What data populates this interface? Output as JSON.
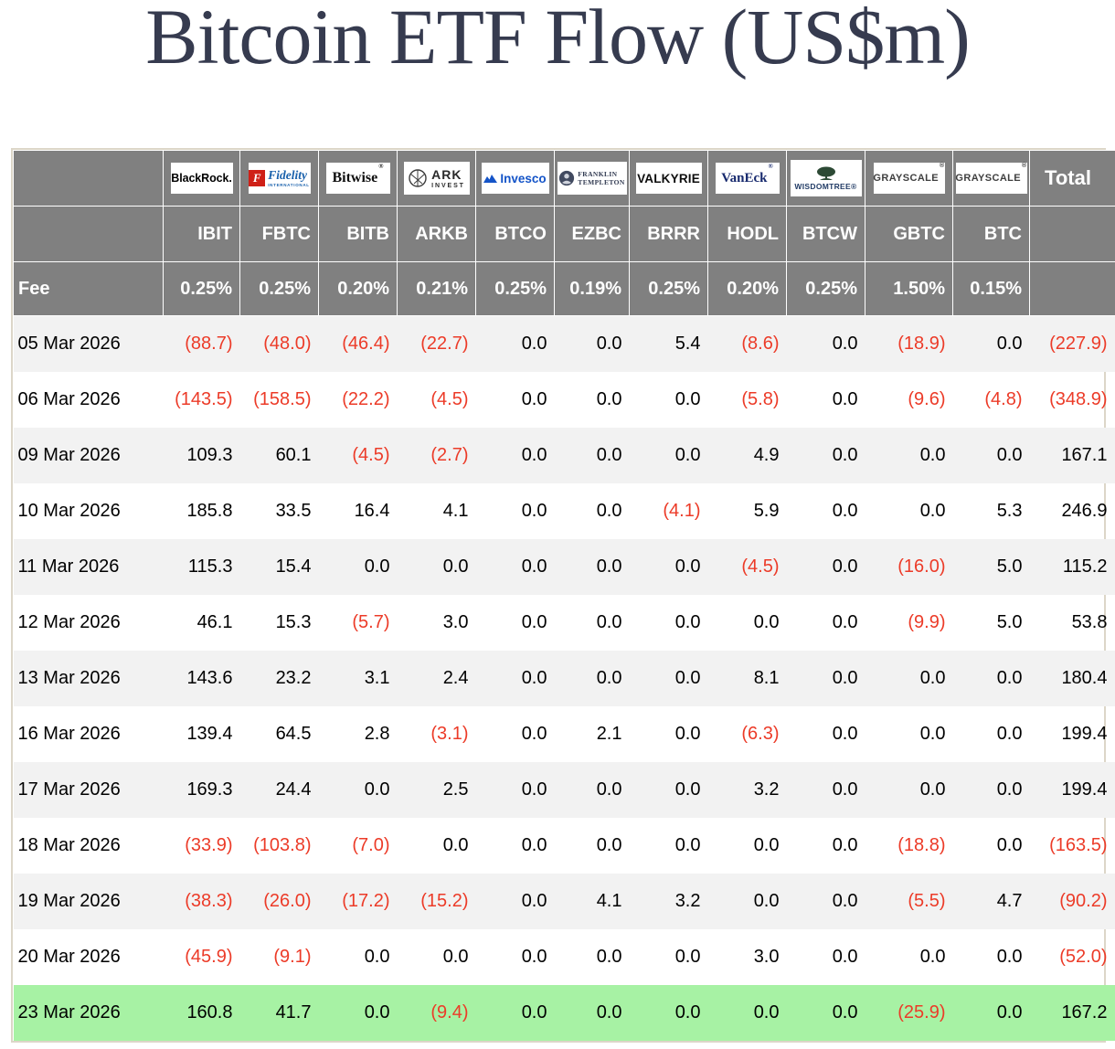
{
  "title": "Bitcoin ETF Flow (US$m)",
  "fee_row_label": "Fee",
  "total_column_label": "Total",
  "providers": [
    {
      "name": "BlackRock",
      "icon": null,
      "logo_text": "BlackRock.",
      "logo_sub": "",
      "ticker": "IBIT",
      "fee": "0.25%"
    },
    {
      "name": "Fidelity International",
      "icon": "fidelity-f-icon",
      "logo_text": "Fidelity",
      "logo_sub": "INTERNATIONAL",
      "ticker": "FBTC",
      "fee": "0.25%"
    },
    {
      "name": "Bitwise",
      "icon": null,
      "logo_text": "Bitwise",
      "logo_sub": "",
      "ticker": "BITB",
      "fee": "0.20%"
    },
    {
      "name": "ARK Invest",
      "icon": "ark-circle-icon",
      "logo_text": "ARK",
      "logo_sub": "INVEST",
      "ticker": "ARKB",
      "fee": "0.21%"
    },
    {
      "name": "Invesco",
      "icon": "invesco-mountain-icon",
      "logo_text": "Invesco",
      "logo_sub": "",
      "ticker": "BTCO",
      "fee": "0.25%"
    },
    {
      "name": "Franklin Templeton",
      "icon": "franklin-bust-icon",
      "logo_text": "FRANKLIN",
      "logo_sub": "TEMPLETON",
      "ticker": "EZBC",
      "fee": "0.19%"
    },
    {
      "name": "Valkyrie",
      "icon": null,
      "logo_text": "VALKYRIE",
      "logo_sub": "",
      "ticker": "BRRR",
      "fee": "0.25%"
    },
    {
      "name": "VanEck",
      "icon": null,
      "logo_text": "VanEck",
      "logo_sub": "",
      "ticker": "HODL",
      "fee": "0.20%"
    },
    {
      "name": "WisdomTree",
      "icon": "wisdomtree-tree-icon",
      "logo_text": "WISDOMTREE",
      "logo_sub": "",
      "ticker": "BTCW",
      "fee": "0.25%"
    },
    {
      "name": "Grayscale",
      "icon": null,
      "logo_text": "GRAYSCALE",
      "logo_sub": "",
      "ticker": "GBTC",
      "fee": "1.50%"
    },
    {
      "name": "Grayscale",
      "icon": null,
      "logo_text": "GRAYSCALE",
      "logo_sub": "",
      "ticker": "BTC",
      "fee": "0.15%"
    }
  ],
  "chart_data": {
    "type": "table",
    "title": "Bitcoin ETF Flow (US$m)",
    "columns": [
      "IBIT",
      "FBTC",
      "BITB",
      "ARKB",
      "BTCO",
      "EZBC",
      "BRRR",
      "HODL",
      "BTCW",
      "GBTC",
      "BTC",
      "Total"
    ],
    "fees": [
      "0.25%",
      "0.25%",
      "0.20%",
      "0.21%",
      "0.25%",
      "0.19%",
      "0.25%",
      "0.20%",
      "0.25%",
      "1.50%",
      "0.15%",
      null
    ],
    "negative_format": "parentheses-red",
    "rows": [
      {
        "date": "05 Mar 2026",
        "values": [
          -88.7,
          -48.0,
          -46.4,
          -22.7,
          0.0,
          0.0,
          5.4,
          -8.6,
          0.0,
          -18.9,
          0.0
        ],
        "total": -227.9,
        "highlight": false
      },
      {
        "date": "06 Mar 2026",
        "values": [
          -143.5,
          -158.5,
          -22.2,
          -4.5,
          0.0,
          0.0,
          0.0,
          -5.8,
          0.0,
          -9.6,
          -4.8
        ],
        "total": -348.9,
        "highlight": false
      },
      {
        "date": "09 Mar 2026",
        "values": [
          109.3,
          60.1,
          -4.5,
          -2.7,
          0.0,
          0.0,
          0.0,
          4.9,
          0.0,
          0.0,
          0.0
        ],
        "total": 167.1,
        "highlight": false
      },
      {
        "date": "10 Mar 2026",
        "values": [
          185.8,
          33.5,
          16.4,
          4.1,
          0.0,
          0.0,
          -4.1,
          5.9,
          0.0,
          0.0,
          5.3
        ],
        "total": 246.9,
        "highlight": false
      },
      {
        "date": "11 Mar 2026",
        "values": [
          115.3,
          15.4,
          0.0,
          0.0,
          0.0,
          0.0,
          0.0,
          -4.5,
          0.0,
          -16.0,
          5.0
        ],
        "total": 115.2,
        "highlight": false
      },
      {
        "date": "12 Mar 2026",
        "values": [
          46.1,
          15.3,
          -5.7,
          3.0,
          0.0,
          0.0,
          0.0,
          0.0,
          0.0,
          -9.9,
          5.0
        ],
        "total": 53.8,
        "highlight": false
      },
      {
        "date": "13 Mar 2026",
        "values": [
          143.6,
          23.2,
          3.1,
          2.4,
          0.0,
          0.0,
          0.0,
          8.1,
          0.0,
          0.0,
          0.0
        ],
        "total": 180.4,
        "highlight": false
      },
      {
        "date": "16 Mar 2026",
        "values": [
          139.4,
          64.5,
          2.8,
          -3.1,
          0.0,
          2.1,
          0.0,
          -6.3,
          0.0,
          0.0,
          0.0
        ],
        "total": 199.4,
        "highlight": false
      },
      {
        "date": "17 Mar 2026",
        "values": [
          169.3,
          24.4,
          0.0,
          2.5,
          0.0,
          0.0,
          0.0,
          3.2,
          0.0,
          0.0,
          0.0
        ],
        "total": 199.4,
        "highlight": false
      },
      {
        "date": "18 Mar 2026",
        "values": [
          -33.9,
          -103.8,
          -7.0,
          0.0,
          0.0,
          0.0,
          0.0,
          0.0,
          0.0,
          -18.8,
          0.0
        ],
        "total": -163.5,
        "highlight": false
      },
      {
        "date": "19 Mar 2026",
        "values": [
          -38.3,
          -26.0,
          -17.2,
          -15.2,
          0.0,
          4.1,
          3.2,
          0.0,
          0.0,
          -5.5,
          4.7
        ],
        "total": -90.2,
        "highlight": false
      },
      {
        "date": "20 Mar 2026",
        "values": [
          -45.9,
          -9.1,
          0.0,
          0.0,
          0.0,
          0.0,
          0.0,
          3.0,
          0.0,
          0.0,
          0.0
        ],
        "total": -52.0,
        "highlight": false
      },
      {
        "date": "23 Mar 2026",
        "values": [
          160.8,
          41.7,
          0.0,
          -9.4,
          0.0,
          0.0,
          0.0,
          0.0,
          0.0,
          -25.9,
          0.0
        ],
        "total": 167.2,
        "highlight": true
      }
    ]
  },
  "colors": {
    "negative_value": "#ec3b28",
    "highlight_row": "#a7f2a4",
    "header_bg": "#808080",
    "row_stripe": "#f2f2f2",
    "title_text": "#363b4f",
    "table_border": "#dcd6c8"
  }
}
